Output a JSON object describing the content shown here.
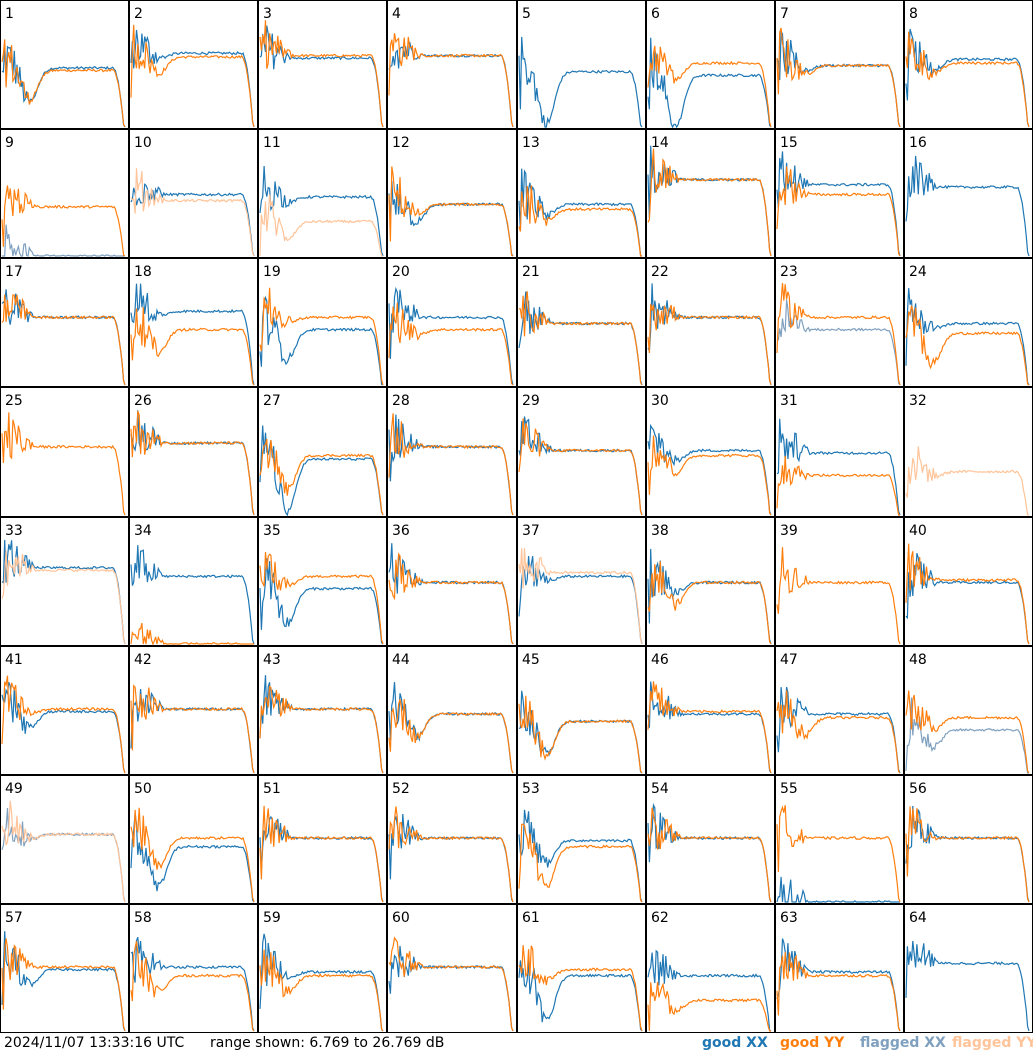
{
  "footer": {
    "timestamp": "2024/11/07 13:33:16 UTC",
    "range_text": "range shown: 6.769 to 26.769 dB"
  },
  "legend": [
    {
      "label": "good XX",
      "color": "#1f77b4"
    },
    {
      "label": "good YY",
      "color": "#ff7f0e"
    },
    {
      "label": "flagged XX",
      "color": "#7fa0bf"
    },
    {
      "label": "flagged YY",
      "color": "#ffc499"
    }
  ],
  "chart_data": {
    "type": "line",
    "grid": "8x8 small multiples",
    "ylim_db": [
      6.769,
      26.769
    ],
    "x_ticks": "none",
    "y_ticks": "none",
    "series_names": [
      "good XX",
      "good YY",
      "flagged XX",
      "flagged YY"
    ],
    "panels": [
      {
        "id": "1",
        "xx": "good",
        "yy": "good",
        "xx_level": 0.48,
        "yy_level": 0.46,
        "xx_dip": 0.3,
        "yy_dip": 0.25
      },
      {
        "id": "2",
        "xx": "good",
        "yy": "good",
        "xx_level": 0.6,
        "yy_level": 0.57,
        "xx_dip": 0.05,
        "yy_dip": 0.15
      },
      {
        "id": "3",
        "xx": "good",
        "yy": "good",
        "xx_level": 0.56,
        "yy_level": 0.58,
        "xx_dip": 0.0,
        "yy_dip": 0.0
      },
      {
        "id": "4",
        "xx": "good",
        "yy": "good",
        "xx_level": 0.58,
        "yy_level": 0.58,
        "xx_dip": 0.0,
        "yy_dip": 0.0
      },
      {
        "id": "5",
        "xx": "good",
        "yy": "none",
        "xx_level": 0.45,
        "yy_level": 0,
        "xx_dip": 0.45,
        "yy_dip": 0
      },
      {
        "id": "6",
        "xx": "good",
        "yy": "good",
        "xx_level": 0.42,
        "yy_level": 0.52,
        "xx_dip": 0.45,
        "yy_dip": 0.15
      },
      {
        "id": "7",
        "xx": "good",
        "yy": "good",
        "xx_level": 0.5,
        "yy_level": 0.5,
        "xx_dip": 0.05,
        "yy_dip": 0.1
      },
      {
        "id": "8",
        "xx": "good",
        "yy": "good",
        "xx_level": 0.55,
        "yy_level": 0.52,
        "xx_dip": 0.1,
        "yy_dip": 0.1
      },
      {
        "id": "9",
        "xx": "flagged",
        "yy": "good",
        "xx_level": 0.0,
        "yy_level": 0.4,
        "xx_dip": 0.0,
        "yy_dip": 0.0
      },
      {
        "id": "10",
        "xx": "good",
        "yy": "flagged",
        "xx_level": 0.5,
        "yy_level": 0.45,
        "xx_dip": 0.0,
        "yy_dip": 0.0
      },
      {
        "id": "11",
        "xx": "good",
        "yy": "flagged",
        "xx_level": 0.48,
        "yy_level": 0.28,
        "xx_dip": 0.05,
        "yy_dip": 0.15
      },
      {
        "id": "12",
        "xx": "good",
        "yy": "good",
        "xx_level": 0.42,
        "yy_level": 0.42,
        "xx_dip": 0.15,
        "yy_dip": 0.1
      },
      {
        "id": "13",
        "xx": "good",
        "yy": "good",
        "xx_level": 0.42,
        "yy_level": 0.38,
        "xx_dip": 0.1,
        "yy_dip": 0.1
      },
      {
        "id": "14",
        "xx": "good",
        "yy": "good",
        "xx_level": 0.62,
        "yy_level": 0.62,
        "xx_dip": 0.0,
        "yy_dip": 0.0
      },
      {
        "id": "15",
        "xx": "good",
        "yy": "good",
        "xx_level": 0.58,
        "yy_level": 0.5,
        "xx_dip": 0.0,
        "yy_dip": 0.0
      },
      {
        "id": "16",
        "xx": "good",
        "yy": "none",
        "xx_level": 0.56,
        "yy_level": 0,
        "xx_dip": 0.0,
        "yy_dip": 0
      },
      {
        "id": "17",
        "xx": "good",
        "yy": "good",
        "xx_level": 0.55,
        "yy_level": 0.55,
        "xx_dip": 0.0,
        "yy_dip": 0.0
      },
      {
        "id": "18",
        "xx": "good",
        "yy": "good",
        "xx_level": 0.6,
        "yy_level": 0.45,
        "xx_dip": 0.05,
        "yy_dip": 0.2
      },
      {
        "id": "19",
        "xx": "good",
        "yy": "good",
        "xx_level": 0.45,
        "yy_level": 0.55,
        "xx_dip": 0.25,
        "yy_dip": 0.05
      },
      {
        "id": "20",
        "xx": "good",
        "yy": "good",
        "xx_level": 0.55,
        "yy_level": 0.45,
        "xx_dip": 0.0,
        "yy_dip": 0.05
      },
      {
        "id": "21",
        "xx": "good",
        "yy": "good",
        "xx_level": 0.5,
        "yy_level": 0.5,
        "xx_dip": 0.0,
        "yy_dip": 0.0
      },
      {
        "id": "22",
        "xx": "good",
        "yy": "good",
        "xx_level": 0.55,
        "yy_level": 0.55,
        "xx_dip": 0.0,
        "yy_dip": 0.0
      },
      {
        "id": "23",
        "xx": "flagged",
        "yy": "good",
        "xx_level": 0.45,
        "yy_level": 0.55,
        "xx_dip": 0.0,
        "yy_dip": 0.0
      },
      {
        "id": "24",
        "xx": "good",
        "yy": "good",
        "xx_level": 0.5,
        "yy_level": 0.42,
        "xx_dip": 0.05,
        "yy_dip": 0.25
      },
      {
        "id": "25",
        "xx": "none",
        "yy": "good",
        "xx_level": 0,
        "yy_level": 0.55,
        "xx_dip": 0,
        "yy_dip": 0.0
      },
      {
        "id": "26",
        "xx": "good",
        "yy": "good",
        "xx_level": 0.58,
        "yy_level": 0.58,
        "xx_dip": 0.0,
        "yy_dip": 0.0
      },
      {
        "id": "27",
        "xx": "good",
        "yy": "good",
        "xx_level": 0.45,
        "yy_level": 0.48,
        "xx_dip": 0.45,
        "yy_dip": 0.3
      },
      {
        "id": "28",
        "xx": "good",
        "yy": "good",
        "xx_level": 0.55,
        "yy_level": 0.55,
        "xx_dip": 0.0,
        "yy_dip": 0.0
      },
      {
        "id": "29",
        "xx": "good",
        "yy": "good",
        "xx_level": 0.52,
        "yy_level": 0.52,
        "xx_dip": 0.0,
        "yy_dip": 0.0
      },
      {
        "id": "30",
        "xx": "good",
        "yy": "good",
        "xx_level": 0.52,
        "yy_level": 0.48,
        "xx_dip": 0.1,
        "yy_dip": 0.15
      },
      {
        "id": "31",
        "xx": "good",
        "yy": "good",
        "xx_level": 0.5,
        "yy_level": 0.32,
        "xx_dip": 0.0,
        "yy_dip": 0.0
      },
      {
        "id": "32",
        "xx": "none",
        "yy": "flagged",
        "xx_level": 0,
        "yy_level": 0.35,
        "xx_dip": 0,
        "yy_dip": 0.05
      },
      {
        "id": "33",
        "xx": "good",
        "yy": "flagged",
        "xx_level": 0.62,
        "yy_level": 0.6,
        "xx_dip": 0.0,
        "yy_dip": 0.0
      },
      {
        "id": "34",
        "xx": "good",
        "yy": "good",
        "xx_level": 0.55,
        "yy_level": 0.0,
        "xx_dip": 0.0,
        "yy_dip": 0.0
      },
      {
        "id": "35",
        "xx": "good",
        "yy": "good",
        "xx_level": 0.45,
        "yy_level": 0.55,
        "xx_dip": 0.3,
        "yy_dip": 0.1
      },
      {
        "id": "36",
        "xx": "good",
        "yy": "good",
        "xx_level": 0.5,
        "yy_level": 0.5,
        "xx_dip": 0.0,
        "yy_dip": 0.0
      },
      {
        "id": "37",
        "xx": "good",
        "yy": "flagged",
        "xx_level": 0.55,
        "yy_level": 0.58,
        "xx_dip": 0.05,
        "yy_dip": 0.0
      },
      {
        "id": "38",
        "xx": "good",
        "yy": "good",
        "xx_level": 0.5,
        "yy_level": 0.5,
        "xx_dip": 0.1,
        "yy_dip": 0.2
      },
      {
        "id": "39",
        "xx": "none",
        "yy": "good",
        "xx_level": 0,
        "yy_level": 0.5,
        "xx_dip": 0,
        "yy_dip": 0.0
      },
      {
        "id": "40",
        "xx": "good",
        "yy": "good",
        "xx_level": 0.5,
        "yy_level": 0.52,
        "xx_dip": 0.0,
        "yy_dip": 0.0
      },
      {
        "id": "41",
        "xx": "good",
        "yy": "good",
        "xx_level": 0.5,
        "yy_level": 0.52,
        "xx_dip": 0.15,
        "yy_dip": 0.05
      },
      {
        "id": "42",
        "xx": "good",
        "yy": "good",
        "xx_level": 0.52,
        "yy_level": 0.52,
        "xx_dip": 0.0,
        "yy_dip": 0.0
      },
      {
        "id": "43",
        "xx": "good",
        "yy": "good",
        "xx_level": 0.52,
        "yy_level": 0.52,
        "xx_dip": 0.0,
        "yy_dip": 0.0
      },
      {
        "id": "44",
        "xx": "good",
        "yy": "good",
        "xx_level": 0.48,
        "yy_level": 0.48,
        "xx_dip": 0.2,
        "yy_dip": 0.2
      },
      {
        "id": "45",
        "xx": "good",
        "yy": "good",
        "xx_level": 0.42,
        "yy_level": 0.42,
        "xx_dip": 0.3,
        "yy_dip": 0.3
      },
      {
        "id": "46",
        "xx": "good",
        "yy": "good",
        "xx_level": 0.48,
        "yy_level": 0.5,
        "xx_dip": 0.0,
        "yy_dip": 0.0
      },
      {
        "id": "47",
        "xx": "good",
        "yy": "good",
        "xx_level": 0.48,
        "yy_level": 0.45,
        "xx_dip": 0.0,
        "yy_dip": 0.15
      },
      {
        "id": "48",
        "xx": "flagged",
        "yy": "good",
        "xx_level": 0.35,
        "yy_level": 0.45,
        "xx_dip": 0.15,
        "yy_dip": 0.1
      },
      {
        "id": "49",
        "xx": "flagged",
        "yy": "flagged",
        "xx_level": 0.55,
        "yy_level": 0.55,
        "xx_dip": 0.05,
        "yy_dip": 0.05
      },
      {
        "id": "50",
        "xx": "good",
        "yy": "good",
        "xx_level": 0.45,
        "yy_level": 0.52,
        "xx_dip": 0.35,
        "yy_dip": 0.25
      },
      {
        "id": "51",
        "xx": "good",
        "yy": "good",
        "xx_level": 0.52,
        "yy_level": 0.52,
        "xx_dip": 0.0,
        "yy_dip": 0.0
      },
      {
        "id": "52",
        "xx": "good",
        "yy": "good",
        "xx_level": 0.52,
        "yy_level": 0.52,
        "xx_dip": 0.0,
        "yy_dip": 0.0
      },
      {
        "id": "53",
        "xx": "good",
        "yy": "good",
        "xx_level": 0.5,
        "yy_level": 0.45,
        "xx_dip": 0.2,
        "yy_dip": 0.35
      },
      {
        "id": "54",
        "xx": "good",
        "yy": "good",
        "xx_level": 0.52,
        "yy_level": 0.52,
        "xx_dip": 0.0,
        "yy_dip": 0.0
      },
      {
        "id": "55",
        "xx": "good",
        "yy": "good",
        "xx_level": 0.0,
        "yy_level": 0.52,
        "xx_dip": 0.0,
        "yy_dip": 0.0
      },
      {
        "id": "56",
        "xx": "good",
        "yy": "good",
        "xx_level": 0.52,
        "yy_level": 0.52,
        "xx_dip": 0.0,
        "yy_dip": 0.0
      },
      {
        "id": "57",
        "xx": "good",
        "yy": "good",
        "xx_level": 0.5,
        "yy_level": 0.52,
        "xx_dip": 0.15,
        "yy_dip": 0.0
      },
      {
        "id": "58",
        "xx": "good",
        "yy": "good",
        "xx_level": 0.52,
        "yy_level": 0.45,
        "xx_dip": 0.0,
        "yy_dip": 0.15
      },
      {
        "id": "59",
        "xx": "good",
        "yy": "good",
        "xx_level": 0.48,
        "yy_level": 0.45,
        "xx_dip": 0.05,
        "yy_dip": 0.15
      },
      {
        "id": "60",
        "xx": "good",
        "yy": "good",
        "xx_level": 0.52,
        "yy_level": 0.52,
        "xx_dip": 0.0,
        "yy_dip": 0.0
      },
      {
        "id": "61",
        "xx": "good",
        "yy": "good",
        "xx_level": 0.45,
        "yy_level": 0.5,
        "xx_dip": 0.4,
        "yy_dip": 0.1
      },
      {
        "id": "62",
        "xx": "good",
        "yy": "good",
        "xx_level": 0.45,
        "yy_level": 0.25,
        "xx_dip": 0.0,
        "yy_dip": 0.1
      },
      {
        "id": "63",
        "xx": "good",
        "yy": "good",
        "xx_level": 0.48,
        "yy_level": 0.45,
        "xx_dip": 0.0,
        "yy_dip": 0.0
      },
      {
        "id": "64",
        "xx": "good",
        "yy": "none",
        "xx_level": 0.55,
        "yy_level": 0,
        "xx_dip": 0.0,
        "yy_dip": 0
      }
    ]
  }
}
